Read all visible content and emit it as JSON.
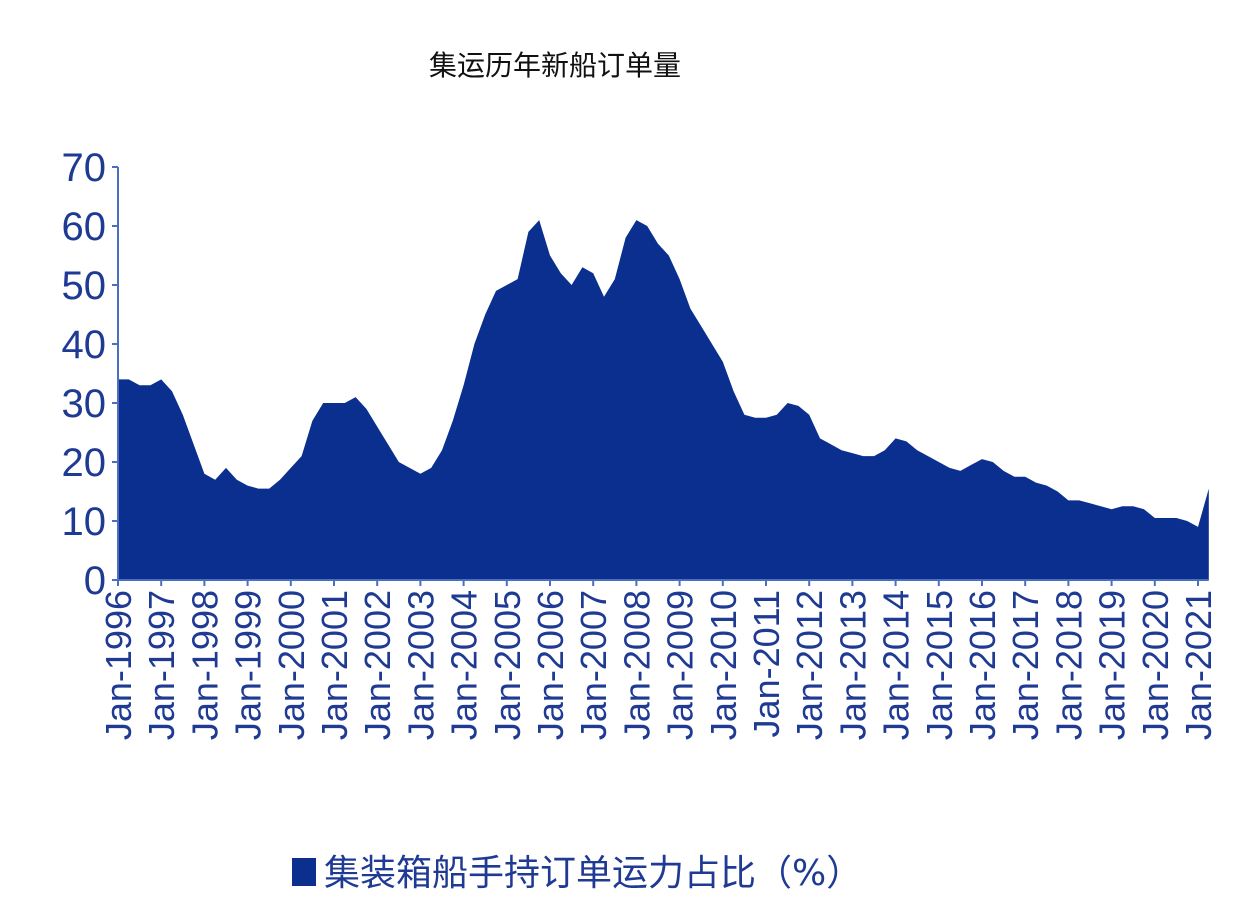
{
  "chart_data": {
    "type": "area",
    "title": "集运历年新船订单量",
    "legend": "集装箱船手持订单运力占比（%）",
    "color": "#0a2f8f",
    "ylim": [
      0,
      70
    ],
    "yticks": [
      0,
      10,
      20,
      30,
      40,
      50,
      60,
      70
    ],
    "categories": [
      "Jan-1996",
      null,
      null,
      null,
      "Jan-1997",
      null,
      null,
      null,
      "Jan-1998",
      null,
      null,
      null,
      "Jan-1999",
      null,
      null,
      null,
      "Jan-2000",
      null,
      null,
      null,
      "Jan-2001",
      null,
      null,
      null,
      "Jan-2002",
      null,
      null,
      null,
      "Jan-2003",
      null,
      null,
      null,
      "Jan-2004",
      null,
      null,
      null,
      "Jan-2005",
      null,
      null,
      null,
      "Jan-2006",
      null,
      null,
      null,
      "Jan-2007",
      null,
      null,
      null,
      "Jan-2008",
      null,
      null,
      null,
      "Jan-2009",
      null,
      null,
      null,
      "Jan-2010",
      null,
      null,
      null,
      "Jan-2011",
      null,
      null,
      null,
      "Jan-2012",
      null,
      null,
      null,
      "Jan-2013",
      null,
      null,
      null,
      "Jan-2014",
      null,
      null,
      null,
      "Jan-2015",
      null,
      null,
      null,
      "Jan-2016",
      null,
      null,
      null,
      "Jan-2017",
      null,
      null,
      null,
      "Jan-2018",
      null,
      null,
      null,
      "Jan-2019",
      null,
      null,
      null,
      "Jan-2020",
      null,
      null,
      null,
      "Jan-2021",
      null
    ],
    "values": [
      34,
      34,
      33,
      33,
      34,
      32,
      28,
      23,
      18,
      17,
      19,
      17,
      16,
      15.5,
      15.5,
      17,
      19,
      21,
      27,
      30,
      30,
      30,
      31,
      29,
      26,
      23,
      20,
      19,
      18,
      19,
      22,
      27,
      33,
      40,
      45,
      49,
      50,
      51,
      59,
      61,
      55,
      52,
      50,
      53,
      52,
      48,
      51,
      58,
      61,
      60,
      57,
      55,
      51,
      46,
      43,
      40,
      37,
      32,
      28,
      27.5,
      27.5,
      28,
      30,
      29.5,
      28,
      24,
      23,
      22,
      21.5,
      21,
      21,
      22,
      24,
      23.5,
      22,
      21,
      20,
      19,
      18.5,
      19.5,
      20.5,
      20,
      18.5,
      17.5,
      17.5,
      16.5,
      16,
      15,
      13.5,
      13.5,
      13,
      12.5,
      12,
      12.5,
      12.5,
      12,
      10.5,
      10.5,
      10.5,
      10,
      9,
      15.5
    ]
  }
}
